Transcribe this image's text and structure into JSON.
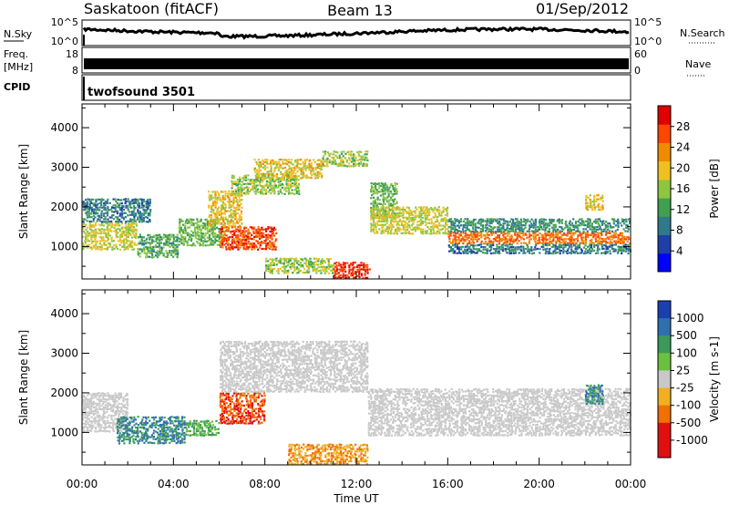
{
  "header": {
    "station": "Saskatoon (fitACF)",
    "beam": "Beam 13",
    "date": "01/Sep/2012"
  },
  "strips": {
    "nsky": {
      "label": "N.Sky",
      "ticks": [
        "10^5",
        "10^0"
      ]
    },
    "nsearch": {
      "label": "N.Search",
      "ticks": [
        "10^5",
        "10^0"
      ]
    },
    "freq": {
      "label_line1": "Freq.",
      "label_line2": "[MHz]",
      "ticks": [
        "18",
        "8"
      ]
    },
    "nave": {
      "label": "Nave",
      "ticks": [
        "60",
        "0"
      ]
    },
    "cpid": {
      "label": "CPID",
      "value": "twofsound 3501"
    }
  },
  "chart_data": [
    {
      "type": "heatmap",
      "panel": "power",
      "ylabel": "Slant Range [km]",
      "xlabel": "Time UT",
      "x_ticks": [
        "00:00",
        "04:00",
        "08:00",
        "12:00",
        "16:00",
        "20:00",
        "00:00"
      ],
      "xlim_hours": [
        0,
        24
      ],
      "y_ticks": [
        1000,
        2000,
        3000,
        4000
      ],
      "ylim": [
        180,
        4600
      ],
      "colorbar": {
        "label": "Power [dB]",
        "ticks": [
          4,
          8,
          12,
          16,
          20,
          24,
          28
        ],
        "range": [
          0,
          32
        ]
      },
      "bands": [
        {
          "t0": 0.0,
          "t1": 2.4,
          "r0": 900,
          "r1": 1600,
          "value": 18
        },
        {
          "t0": 0.0,
          "t1": 3.0,
          "r0": 1600,
          "r1": 2200,
          "value": 8
        },
        {
          "t0": 2.4,
          "t1": 4.2,
          "r0": 700,
          "r1": 1300,
          "value": 12
        },
        {
          "t0": 4.2,
          "t1": 6.2,
          "r0": 1000,
          "r1": 1700,
          "value": 14
        },
        {
          "t0": 5.5,
          "t1": 7.0,
          "r0": 1500,
          "r1": 2400,
          "value": 20
        },
        {
          "t0": 6.0,
          "t1": 8.5,
          "r0": 900,
          "r1": 1500,
          "value": 28
        },
        {
          "t0": 6.5,
          "t1": 9.5,
          "r0": 2300,
          "r1": 2800,
          "value": 16
        },
        {
          "t0": 7.5,
          "t1": 10.5,
          "r0": 2700,
          "r1": 3200,
          "value": 20
        },
        {
          "t0": 10.5,
          "t1": 12.5,
          "r0": 3000,
          "r1": 3400,
          "value": 16
        },
        {
          "t0": 8.0,
          "t1": 11.0,
          "r0": 300,
          "r1": 700,
          "value": 16
        },
        {
          "t0": 11.0,
          "t1": 12.6,
          "r0": 180,
          "r1": 600,
          "value": 30
        },
        {
          "t0": 12.6,
          "t1": 13.8,
          "r0": 1700,
          "r1": 2600,
          "value": 14
        },
        {
          "t0": 12.6,
          "t1": 16.0,
          "r0": 1300,
          "r1": 2000,
          "value": 18
        },
        {
          "t0": 16.0,
          "t1": 24.0,
          "r0": 1050,
          "r1": 1350,
          "value": 26
        },
        {
          "t0": 16.0,
          "t1": 24.0,
          "r0": 1350,
          "r1": 1700,
          "value": 10
        },
        {
          "t0": 16.0,
          "t1": 24.0,
          "r0": 800,
          "r1": 1050,
          "value": 8
        },
        {
          "t0": 22.0,
          "t1": 22.8,
          "r0": 1900,
          "r1": 2300,
          "value": 20
        }
      ]
    },
    {
      "type": "heatmap",
      "panel": "velocity",
      "ylabel": "Slant Range [km]",
      "xlabel": "Time UT",
      "x_ticks": [
        "00:00",
        "04:00",
        "08:00",
        "12:00",
        "16:00",
        "20:00",
        "00:00"
      ],
      "xlim_hours": [
        0,
        24
      ],
      "y_ticks": [
        1000,
        2000,
        3000,
        4000
      ],
      "ylim": [
        180,
        4600
      ],
      "colorbar": {
        "label": "Velocity [m s-1]",
        "ticks": [
          1000,
          500,
          100,
          25,
          -25,
          -100,
          -500,
          -1000
        ]
      },
      "bands": [
        {
          "t0": 0.0,
          "t1": 2.0,
          "r0": 1000,
          "r1": 2000,
          "value": 0
        },
        {
          "t0": 1.5,
          "t1": 4.5,
          "r0": 700,
          "r1": 1400,
          "value": 500
        },
        {
          "t0": 4.5,
          "t1": 6.0,
          "r0": 900,
          "r1": 1300,
          "value": 100
        },
        {
          "t0": 6.0,
          "t1": 8.0,
          "r0": 1200,
          "r1": 2000,
          "value": -500
        },
        {
          "t0": 6.0,
          "t1": 12.5,
          "r0": 2000,
          "r1": 3300,
          "value": 0
        },
        {
          "t0": 9.0,
          "t1": 12.5,
          "r0": 180,
          "r1": 700,
          "value": -100
        },
        {
          "t0": 12.5,
          "t1": 24.0,
          "r0": 900,
          "r1": 2100,
          "value": 0
        },
        {
          "t0": 22.0,
          "t1": 22.8,
          "r0": 1700,
          "r1": 2200,
          "value": 500
        }
      ]
    }
  ]
}
